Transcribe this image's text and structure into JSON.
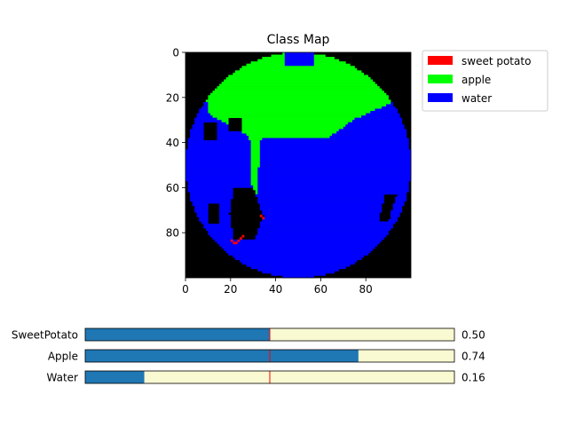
{
  "chart_data": [
    {
      "type": "heatmap",
      "title": "Class Map",
      "image_size": [
        100,
        100
      ],
      "xticks": [
        0,
        20,
        40,
        60,
        80
      ],
      "yticks": [
        0,
        20,
        40,
        60,
        80
      ],
      "xlim": [
        0,
        100
      ],
      "ylim": [
        100,
        0
      ],
      "legend_position": "outside-top-right",
      "background_color": "#000000",
      "classes": [
        {
          "name": "sweet potato",
          "color": "#ff0000"
        },
        {
          "name": "apple",
          "color": "#00ff00"
        },
        {
          "name": "water",
          "color": "#0000ff"
        }
      ],
      "regions": {
        "disk": {
          "center": [
            50,
            50
          ],
          "radius": 50
        },
        "apple_region": "upper cap of disk, rows 0 to ~40, with narrow strip to ~row 62 near x≈30",
        "water_region": "rest of disk, rows ~40 to 100",
        "sweet_potato_pixels": [
          [
            20,
            83
          ],
          [
            21,
            84
          ],
          [
            22,
            84
          ],
          [
            23,
            83
          ],
          [
            24,
            82
          ],
          [
            25,
            81
          ],
          [
            33,
            72
          ],
          [
            34,
            73
          ]
        ],
        "black_holes": [
          "left notch near x≈5-15, y≈30-40",
          "left pocket near x≈18-35, y≈60-82",
          "right slit near x≈88-93, y≈63-73"
        ]
      }
    },
    {
      "type": "bar",
      "orientation": "horizontal",
      "categories": [
        "SweetPotato",
        "Apple",
        "Water"
      ],
      "values": [
        0.5,
        0.74,
        0.16
      ],
      "value_labels": [
        "0.50",
        "0.74",
        "0.16"
      ],
      "xlim": [
        0,
        1
      ],
      "threshold": 0.5,
      "colors": {
        "fill": "#1f77b4",
        "track": "#fafad2",
        "threshold": "#ff0000"
      }
    }
  ]
}
